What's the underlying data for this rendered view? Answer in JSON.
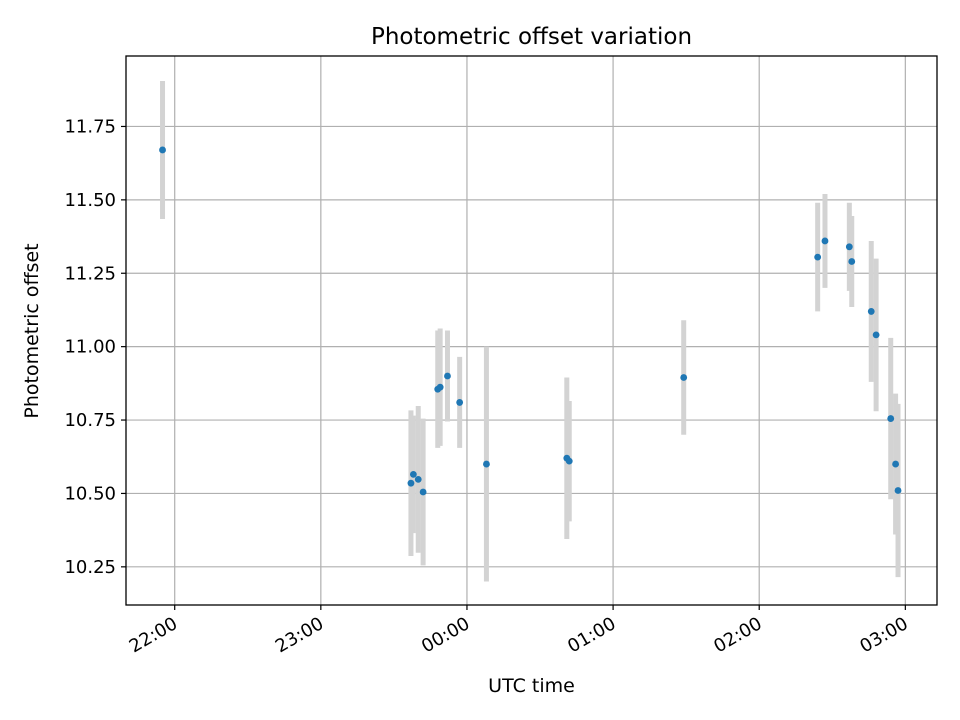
{
  "chart_data": {
    "type": "scatter",
    "title": "Photometric offset variation",
    "xlabel": "UTC time",
    "ylabel": "Photometric offset",
    "x_unit": "UTC",
    "xlim": [
      "21:40",
      "03:13"
    ],
    "ylim": [
      10.12,
      11.99
    ],
    "x_ticks": [
      "22:00",
      "23:00",
      "00:00",
      "01:00",
      "02:00",
      "03:00"
    ],
    "y_ticks": [
      "10.25",
      "10.50",
      "10.75",
      "11.00",
      "11.25",
      "11.50",
      "11.75"
    ],
    "grid": true,
    "colors": {
      "point": "#1f77b4",
      "errorbar": "#d3d3d3",
      "grid": "#b0b0b0"
    },
    "points": [
      {
        "x": "21:55",
        "y": 11.67,
        "yerr": 0.235
      },
      {
        "x": "23:37",
        "y": 10.535,
        "yerr": 0.248
      },
      {
        "x": "23:38",
        "y": 10.565,
        "yerr": 0.2
      },
      {
        "x": "23:40",
        "y": 10.548,
        "yerr": 0.25
      },
      {
        "x": "23:42",
        "y": 10.505,
        "yerr": 0.25
      },
      {
        "x": "23:48",
        "y": 10.855,
        "yerr": 0.2
      },
      {
        "x": "23:49",
        "y": 10.862,
        "yerr": 0.2
      },
      {
        "x": "23:52",
        "y": 10.9,
        "yerr": 0.155
      },
      {
        "x": "23:57",
        "y": 10.81,
        "yerr": 0.155
      },
      {
        "x": "00:08",
        "y": 10.6,
        "yerr": 0.4
      },
      {
        "x": "00:41",
        "y": 10.62,
        "yerr": 0.275
      },
      {
        "x": "00:42",
        "y": 10.61,
        "yerr": 0.205
      },
      {
        "x": "01:29",
        "y": 10.895,
        "yerr": 0.195
      },
      {
        "x": "02:24",
        "y": 11.305,
        "yerr": 0.185
      },
      {
        "x": "02:27",
        "y": 11.36,
        "yerr": 0.16
      },
      {
        "x": "02:37",
        "y": 11.34,
        "yerr": 0.15
      },
      {
        "x": "02:38",
        "y": 11.29,
        "yerr": 0.155
      },
      {
        "x": "02:46",
        "y": 11.12,
        "yerr": 0.24
      },
      {
        "x": "02:48",
        "y": 11.04,
        "yerr": 0.26
      },
      {
        "x": "02:54",
        "y": 10.755,
        "yerr": 0.275
      },
      {
        "x": "02:56",
        "y": 10.6,
        "yerr": 0.24
      },
      {
        "x": "02:57",
        "y": 10.51,
        "yerr": 0.295
      }
    ]
  }
}
